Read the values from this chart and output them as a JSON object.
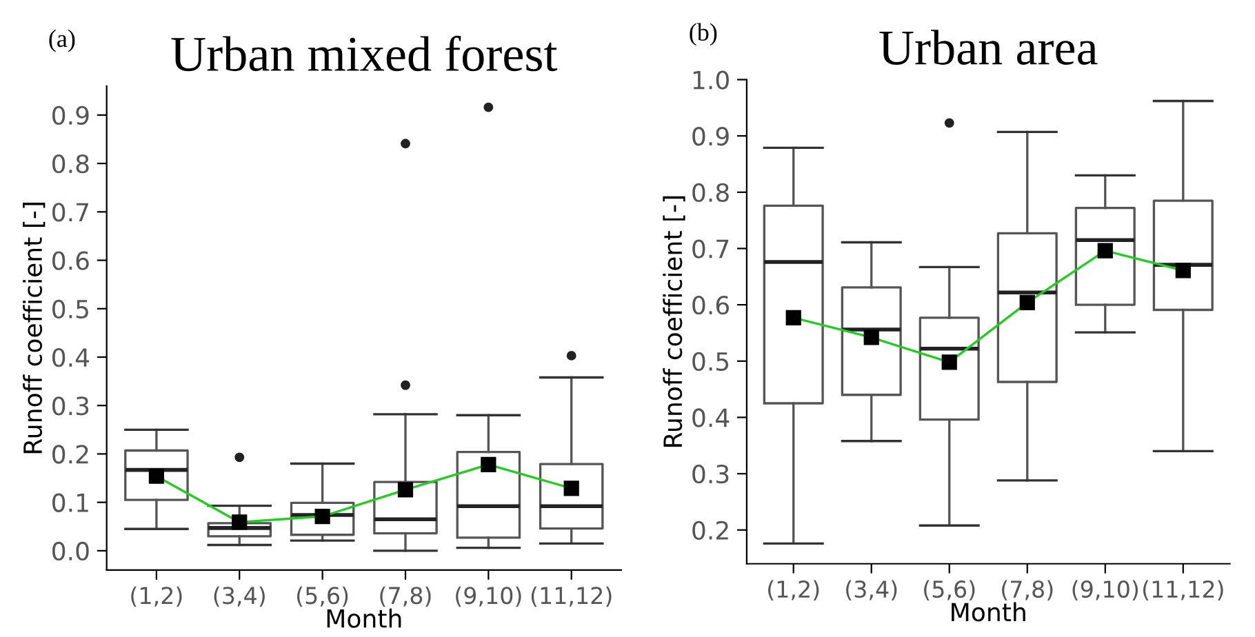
{
  "chart_data": [
    {
      "type": "box",
      "title": "Urban mixed forest",
      "xlabel": "Month",
      "ylabel": "Runoff coefficient [-]",
      "annotations": [
        "(a)"
      ],
      "categories": [
        "(1,2)",
        "(3,4)",
        "(5,6)",
        "(7,8)",
        "(9,10)",
        "(11,12)"
      ],
      "boxes": [
        {
          "low": 0.045,
          "q1": 0.105,
          "median": 0.167,
          "q3": 0.207,
          "high": 0.25
        },
        {
          "low": 0.012,
          "q1": 0.03,
          "median": 0.047,
          "q3": 0.057,
          "high": 0.093,
          "outliers": [
            0.193
          ]
        },
        {
          "low": 0.021,
          "q1": 0.033,
          "median": 0.074,
          "q3": 0.099,
          "high": 0.18
        },
        {
          "low": 0.0,
          "q1": 0.036,
          "median": 0.065,
          "q3": 0.142,
          "high": 0.282,
          "outliers": [
            0.342,
            0.841
          ]
        },
        {
          "low": 0.006,
          "q1": 0.027,
          "median": 0.092,
          "q3": 0.204,
          "high": 0.28,
          "outliers": [
            0.916
          ]
        },
        {
          "low": 0.015,
          "q1": 0.046,
          "median": 0.092,
          "q3": 0.179,
          "high": 0.358,
          "outliers": [
            0.403
          ]
        }
      ],
      "series": [
        {
          "type": "line",
          "color": "#22cc22",
          "marker": "square",
          "values": [
            0.154,
            0.059,
            0.071,
            0.126,
            0.178,
            0.129
          ]
        }
      ],
      "ylim": [
        -0.04,
        0.96
      ],
      "yticks": [
        {
          "value": 0,
          "label": "0.0"
        },
        0.1,
        0.2,
        0.3,
        0.4,
        0.5,
        0.6,
        0.7,
        0.8,
        0.9
      ],
      "grid": false,
      "legend": false
    },
    {
      "type": "box",
      "title": "Urban area",
      "xlabel": "Month",
      "ylabel": "Runoff coefficient [-]",
      "annotations": [
        "(b)"
      ],
      "categories": [
        "(1,2)",
        "(3,4)",
        "(5,6)",
        "(7,8)",
        "(9,10)",
        "(11,12)"
      ],
      "boxes": [
        {
          "low": 0.176,
          "q1": 0.425,
          "median": 0.676,
          "q3": 0.776,
          "high": 0.879
        },
        {
          "low": 0.358,
          "q1": 0.44,
          "median": 0.556,
          "q3": 0.631,
          "high": 0.711
        },
        {
          "low": 0.208,
          "q1": 0.396,
          "median": 0.522,
          "q3": 0.577,
          "high": 0.667,
          "outliers": [
            0.923
          ]
        },
        {
          "low": 0.288,
          "q1": 0.463,
          "median": 0.622,
          "q3": 0.727,
          "high": 0.907
        },
        {
          "low": 0.551,
          "q1": 0.6,
          "median": 0.715,
          "q3": 0.772,
          "high": 0.83
        },
        {
          "low": 0.34,
          "q1": 0.591,
          "median": 0.671,
          "q3": 0.785,
          "high": 0.962
        }
      ],
      "series": [
        {
          "type": "line",
          "color": "#22cc22",
          "marker": "square",
          "values": [
            0.577,
            0.542,
            0.498,
            0.604,
            0.696,
            0.661
          ]
        }
      ],
      "ylim": [
        0.14,
        1.0
      ],
      "yticks": [
        0.2,
        0.3,
        0.4,
        0.5,
        0.6,
        0.7,
        0.8,
        0.9,
        {
          "value": 1,
          "label": "1.0"
        }
      ],
      "grid": false,
      "legend": false
    }
  ]
}
